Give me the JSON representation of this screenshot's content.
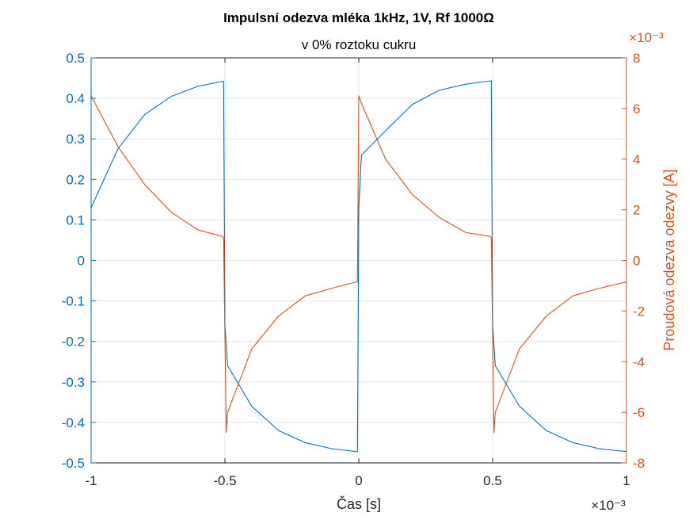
{
  "chart_data": {
    "type": "line",
    "title": "Impulsní odezva mléka 1kHz, 1V, Rf 1000Ω",
    "subtitle": "v 0% roztoku cukru",
    "xlabel": "Čas [s]",
    "x_exponent_label": "×10⁻³",
    "y_right_label": "Proudová odezva odezvy [A]",
    "y_right_exponent_label": "×10⁻³",
    "xlim": [
      -0.001,
      0.001
    ],
    "ylim_left": [
      -0.5,
      0.5
    ],
    "ylim_right": [
      -0.008,
      0.008
    ],
    "x_ticks": [
      -1,
      -0.5,
      0,
      0.5,
      1
    ],
    "x_tick_labels": [
      "-1",
      "-0.5",
      "0",
      "0.5",
      "1"
    ],
    "y_left_ticks": [
      -0.5,
      -0.4,
      -0.3,
      -0.2,
      -0.1,
      0,
      0.1,
      0.2,
      0.3,
      0.4,
      0.5
    ],
    "y_left_tick_labels": [
      "-0.5",
      "-0.4",
      "-0.3",
      "-0.2",
      "-0.1",
      "0",
      "0.1",
      "0.2",
      "0.3",
      "0.4",
      "0.5"
    ],
    "y_right_ticks": [
      -8,
      -6,
      -4,
      -2,
      0,
      2,
      4,
      6,
      8
    ],
    "y_right_tick_labels": [
      "-8",
      "-6",
      "-4",
      "-2",
      "0",
      "2",
      "4",
      "6",
      "8"
    ],
    "grid": true,
    "colors": {
      "left": "#0072BD",
      "right": "#D95319",
      "grid": "#dfe6ee",
      "axis": "#262626"
    },
    "series": [
      {
        "axis": "left",
        "color": "#0072BD",
        "x": [
          -0.001,
          -0.0009,
          -0.0008,
          -0.0007,
          -0.0006,
          -0.00051,
          -0.000505,
          -0.0005,
          -0.00049,
          -0.0004,
          -0.0003,
          -0.0002,
          -0.0001,
          -1e-05,
          -5e-06,
          0.0,
          1e-05,
          0.0001,
          0.0002,
          0.0003,
          0.0004,
          0.00049,
          0.000495,
          0.0005,
          0.00051,
          0.0006,
          0.0007,
          0.0008,
          0.0009,
          0.001
        ],
        "y": [
          0.13,
          0.275,
          0.36,
          0.405,
          0.43,
          0.442,
          0.442,
          -0.16,
          -0.26,
          -0.36,
          -0.42,
          -0.45,
          -0.465,
          -0.472,
          -0.472,
          0.13,
          0.26,
          0.32,
          0.385,
          0.42,
          0.435,
          0.443,
          0.443,
          -0.16,
          -0.26,
          -0.36,
          -0.42,
          -0.45,
          -0.465,
          -0.472
        ]
      },
      {
        "axis": "right",
        "color": "#D95319",
        "x": [
          -0.001,
          -0.0009,
          -0.0008,
          -0.0007,
          -0.0006,
          -0.00051,
          -0.000505,
          -0.000495,
          -0.00049,
          -0.0004,
          -0.0003,
          -0.0002,
          -0.0001,
          -1e-05,
          -5e-06,
          0.0,
          1e-05,
          0.0001,
          0.0002,
          0.0003,
          0.0004,
          0.00049,
          0.000495,
          0.000505,
          0.00051,
          0.0006,
          0.0007,
          0.0008,
          0.0009,
          0.001
        ],
        "y": [
          0.0065,
          0.0045,
          0.003,
          0.0019,
          0.0012,
          0.00095,
          0.0009,
          -0.0068,
          -0.006,
          -0.0035,
          -0.0022,
          -0.0014,
          -0.0011,
          -0.00085,
          -0.00085,
          0.0065,
          0.0062,
          0.004,
          0.0026,
          0.0017,
          0.0011,
          0.00095,
          0.0009,
          -0.0068,
          -0.006,
          -0.0035,
          -0.0022,
          -0.0014,
          -0.0011,
          -0.00085
        ]
      }
    ]
  }
}
